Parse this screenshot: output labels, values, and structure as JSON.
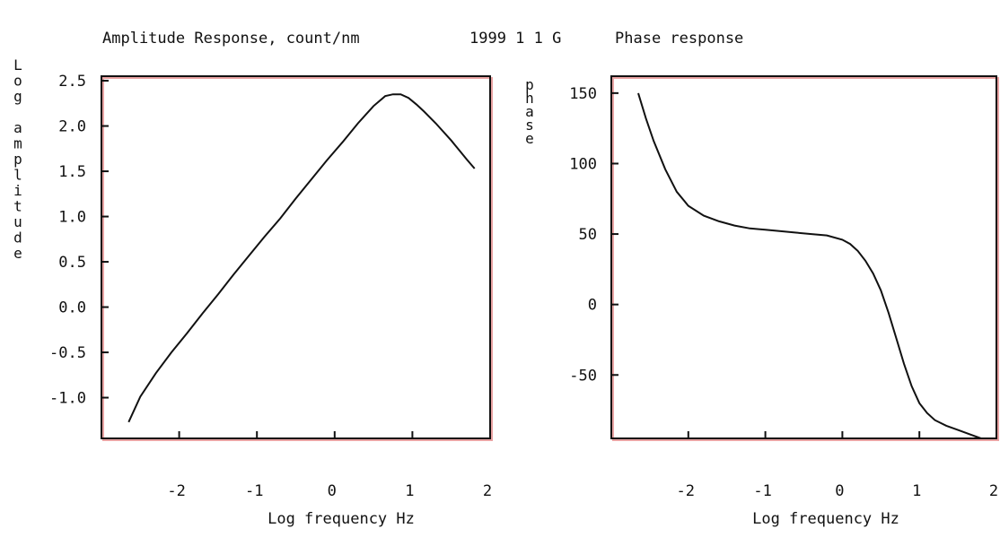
{
  "header": {
    "amplitude_title": "Amplitude Response, count/nm",
    "date": "1999  1 1 G",
    "phase_title": "Phase response"
  },
  "colors": {
    "curve": "#111111",
    "frame": "#111111",
    "frame_shadow": "#e9a3a3",
    "background": "#ffffff"
  },
  "chart_data": [
    {
      "type": "line",
      "title": "Amplitude Response, count/nm",
      "xlabel": "Log frequency  Hz",
      "ylabel": "Log amplitude",
      "xlim": [
        -3.0,
        2.0
      ],
      "ylim": [
        -1.45,
        2.55
      ],
      "xticks": [
        -2,
        -1,
        0,
        1,
        2
      ],
      "xtick_labels": [
        "-2",
        "-1",
        "0",
        "1",
        "2"
      ],
      "yticks": [
        2.5,
        2.0,
        1.5,
        1.0,
        0.5,
        0.0,
        -0.5,
        -1.0
      ],
      "ytick_labels": [
        "2.5",
        "2.0",
        "1.5",
        "1.0",
        "0.5",
        "0.0",
        "-0.5",
        "-1.0"
      ],
      "grid": false,
      "series": [
        {
          "x": [
            -2.65,
            -2.5,
            -2.3,
            -2.1,
            -1.9,
            -1.7,
            -1.5,
            -1.3,
            -1.1,
            -0.9,
            -0.7,
            -0.5,
            -0.3,
            -0.1,
            0.1,
            0.3,
            0.5,
            0.65,
            0.75,
            0.85,
            0.95,
            1.05,
            1.15,
            1.3,
            1.5,
            1.7,
            1.8
          ],
          "y": [
            -1.27,
            -0.99,
            -0.73,
            -0.5,
            -0.29,
            -0.07,
            0.14,
            0.36,
            0.57,
            0.78,
            0.98,
            1.2,
            1.41,
            1.62,
            1.82,
            2.03,
            2.22,
            2.33,
            2.35,
            2.35,
            2.31,
            2.24,
            2.16,
            2.03,
            1.84,
            1.63,
            1.53
          ]
        }
      ]
    },
    {
      "type": "line",
      "title": "Phase response",
      "xlabel": "Log frequency  Hz",
      "ylabel": "phase",
      "xlim": [
        -3.0,
        2.0
      ],
      "ylim": [
        -95,
        162
      ],
      "xticks": [
        -2,
        -1,
        0,
        1,
        2
      ],
      "xtick_labels": [
        "-2",
        "-1",
        "0",
        "1",
        "2"
      ],
      "yticks": [
        150,
        100,
        50,
        0,
        -50
      ],
      "ytick_labels": [
        "150",
        "100",
        "50",
        "0",
        "-50"
      ],
      "grid": false,
      "series": [
        {
          "x": [
            -2.65,
            -2.55,
            -2.45,
            -2.3,
            -2.15,
            -2.0,
            -1.8,
            -1.6,
            -1.4,
            -1.2,
            -1.0,
            -0.8,
            -0.6,
            -0.4,
            -0.2,
            0.0,
            0.1,
            0.2,
            0.3,
            0.4,
            0.5,
            0.6,
            0.7,
            0.8,
            0.9,
            1.0,
            1.1,
            1.2,
            1.35,
            1.5,
            1.65,
            1.8
          ],
          "y": [
            150,
            132,
            116,
            96,
            80,
            70,
            63,
            59,
            56,
            54,
            53,
            52,
            51,
            50,
            49,
            46,
            43,
            38,
            31,
            22,
            10,
            -6,
            -24,
            -42,
            -58,
            -70,
            -77,
            -82,
            -86,
            -89,
            -92,
            -95
          ]
        }
      ]
    }
  ]
}
